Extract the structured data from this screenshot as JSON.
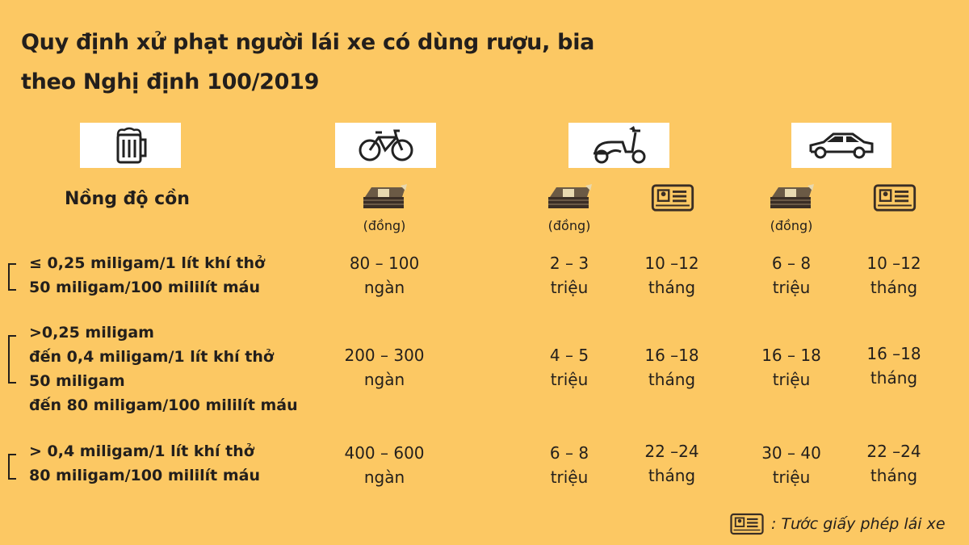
{
  "title": [
    "Quy định xử phạt người lái xe có dùng rượu, bia",
    "theo Nghị định 100/2019"
  ],
  "header": {
    "concentration": "Nồng độ cồn",
    "currency": "(đồng)",
    "icons": [
      "beer-icon",
      "bicycle-icon",
      "scooter-icon",
      "car-icon",
      "money-icon",
      "license-icon"
    ]
  },
  "rows": [
    {
      "label": [
        "≤ 0,25 miligam/1 lít khí thở",
        "50 miligam/100 mililít máu"
      ],
      "bike_fine": [
        "80 – 100",
        "ngàn"
      ],
      "moto_fine": [
        "2 – 3",
        "triệu"
      ],
      "moto_license": [
        "10 –12",
        "tháng"
      ],
      "car_fine": [
        "6 – 8",
        "triệu"
      ],
      "car_license": [
        "10 –12",
        "tháng"
      ]
    },
    {
      "label": [
        ">0,25 miligam",
        "đến 0,4 miligam/1 lít khí thở",
        "50 miligam",
        "đến 80 miligam/100 mililít máu"
      ],
      "bike_fine": [
        "200 – 300",
        "ngàn"
      ],
      "moto_fine": [
        "4 – 5",
        "triệu"
      ],
      "moto_license": [
        "16 –18",
        "tháng"
      ],
      "car_fine": [
        "16 – 18",
        "triệu"
      ],
      "car_license": [
        "16 –18",
        "tháng"
      ]
    },
    {
      "label": [
        "> 0,4 miligam/1 lít khí thở",
        "80 miligam/100 mililít máu"
      ],
      "bike_fine": [
        "400 – 600",
        "ngàn"
      ],
      "moto_fine": [
        "6 – 8",
        "triệu"
      ],
      "moto_license": [
        "22 –24",
        "tháng"
      ],
      "car_fine": [
        "30 – 40",
        "triệu"
      ],
      "car_license": [
        "22 –24",
        "tháng"
      ]
    }
  ],
  "footnote": ": Tước giấy phép lái xe",
  "colors": {
    "background": "#fcc863",
    "text": "#231f1c"
  }
}
